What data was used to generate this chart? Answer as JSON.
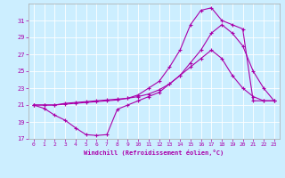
{
  "xlabel": "Windchill (Refroidissement éolien,°C)",
  "background_color": "#cceeff",
  "line_color": "#aa00aa",
  "xlim": [
    -0.5,
    23.5
  ],
  "ylim": [
    17,
    33
  ],
  "yticks": [
    17,
    19,
    21,
    23,
    25,
    27,
    29,
    31
  ],
  "xticks": [
    0,
    1,
    2,
    3,
    4,
    5,
    6,
    7,
    8,
    9,
    10,
    11,
    12,
    13,
    14,
    15,
    16,
    17,
    18,
    19,
    20,
    21,
    22,
    23
  ],
  "line1_x": [
    0,
    1,
    2,
    3,
    4,
    5,
    6,
    7,
    8,
    9,
    10,
    11,
    12,
    13,
    14,
    15,
    16,
    17,
    18,
    19,
    20,
    21,
    22,
    23
  ],
  "line1_y": [
    21.0,
    20.6,
    19.8,
    19.2,
    18.3,
    17.5,
    17.4,
    17.5,
    20.5,
    21.0,
    21.5,
    22.0,
    22.5,
    23.5,
    24.5,
    25.5,
    26.5,
    27.5,
    26.5,
    24.5,
    23.0,
    22.0,
    21.5,
    21.5
  ],
  "line2_x": [
    0,
    1,
    2,
    3,
    4,
    5,
    6,
    7,
    8,
    9,
    10,
    11,
    12,
    13,
    14,
    15,
    16,
    17,
    18,
    19,
    20,
    21,
    22,
    23
  ],
  "line2_y": [
    21.0,
    21.0,
    21.0,
    21.2,
    21.3,
    21.4,
    21.5,
    21.6,
    21.7,
    21.8,
    22.0,
    22.3,
    22.8,
    23.5,
    24.5,
    26.0,
    27.5,
    29.5,
    30.5,
    29.5,
    28.0,
    25.0,
    23.0,
    21.5
  ],
  "line3_x": [
    0,
    1,
    2,
    3,
    4,
    5,
    6,
    7,
    8,
    9,
    10,
    11,
    12,
    13,
    14,
    15,
    16,
    17,
    18,
    19,
    20,
    21,
    22,
    23
  ],
  "line3_y": [
    21.0,
    21.0,
    21.0,
    21.1,
    21.2,
    21.3,
    21.4,
    21.5,
    21.6,
    21.8,
    22.2,
    23.0,
    23.8,
    25.5,
    27.5,
    30.5,
    32.2,
    32.5,
    31.0,
    30.5,
    30.0,
    21.5,
    21.5,
    21.5
  ]
}
